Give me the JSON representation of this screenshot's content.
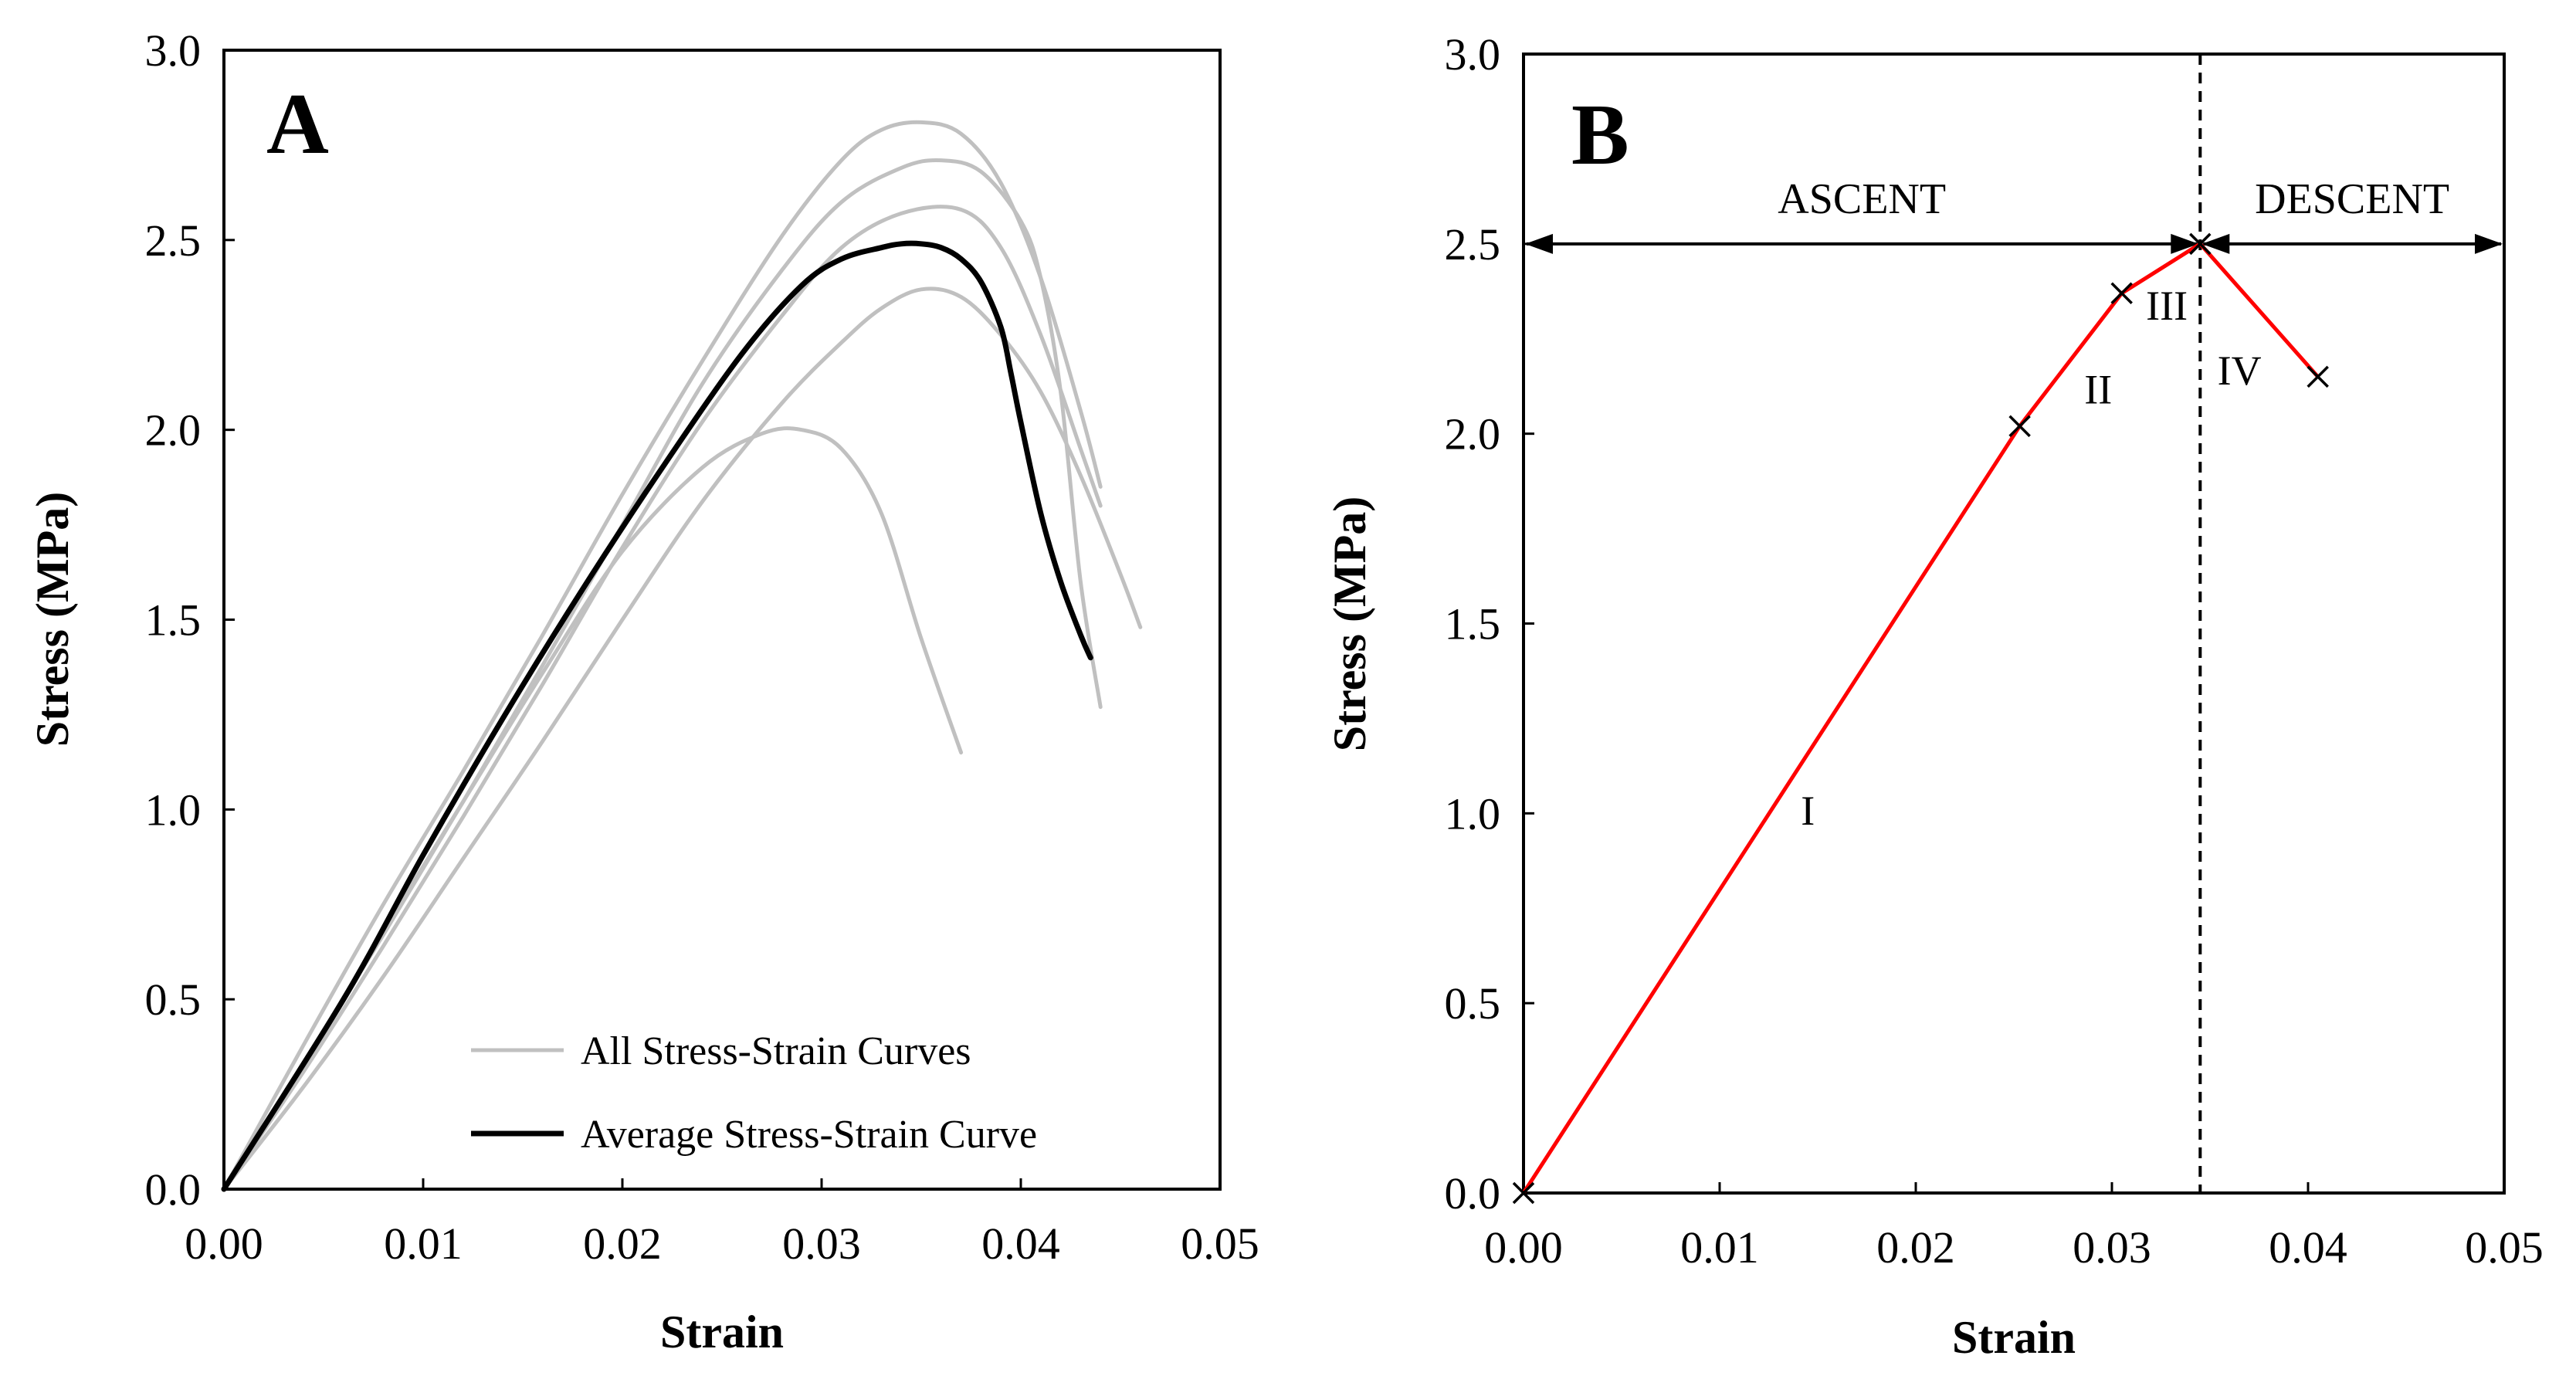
{
  "chart_data": [
    {
      "panel": "A",
      "type": "line",
      "xlabel": "Strain",
      "ylabel": "Stress (MPa)",
      "xlim": [
        0,
        0.05
      ],
      "ylim": [
        0,
        3.0
      ],
      "xticks": [
        "0.00",
        "0.01",
        "0.02",
        "0.03",
        "0.04",
        "0.05"
      ],
      "yticks": [
        "0.0",
        "0.5",
        "1.0",
        "1.5",
        "2.0",
        "2.5",
        "3.0"
      ],
      "grid": false,
      "legend_position": "bottom-right",
      "legend": [
        "All Stress-Strain Curves",
        "Average Stress-Strain Curve"
      ],
      "series": [
        {
          "legend_index": 0,
          "color": "#c0c0c0",
          "x": [
            0,
            0.004,
            0.008,
            0.012,
            0.016,
            0.02,
            0.024,
            0.027,
            0.029,
            0.031,
            0.033,
            0.035,
            0.037
          ],
          "y": [
            0,
            0.33,
            0.68,
            1.02,
            1.36,
            1.68,
            1.9,
            1.99,
            2.0,
            1.95,
            1.78,
            1.45,
            1.15
          ]
        },
        {
          "legend_index": 0,
          "color": "#c0c0c0",
          "x": [
            0,
            0.004,
            0.008,
            0.012,
            0.016,
            0.02,
            0.024,
            0.028,
            0.031,
            0.033,
            0.035,
            0.037,
            0.039,
            0.041,
            0.043,
            0.044
          ],
          "y": [
            0,
            0.38,
            0.75,
            1.1,
            1.46,
            1.83,
            2.18,
            2.51,
            2.71,
            2.79,
            2.81,
            2.78,
            2.65,
            2.4,
            2.05,
            1.85
          ]
        },
        {
          "legend_index": 0,
          "color": "#c0c0c0",
          "x": [
            0,
            0.004,
            0.008,
            0.012,
            0.016,
            0.02,
            0.024,
            0.028,
            0.031,
            0.034,
            0.036,
            0.038,
            0.04,
            0.041,
            0.042,
            0.043,
            0.044
          ],
          "y": [
            0,
            0.33,
            0.67,
            1.02,
            1.38,
            1.75,
            2.12,
            2.42,
            2.6,
            2.69,
            2.71,
            2.68,
            2.55,
            2.4,
            2.1,
            1.6,
            1.27
          ]
        },
        {
          "legend_index": 0,
          "color": "#c0c0c0",
          "x": [
            0,
            0.004,
            0.008,
            0.012,
            0.016,
            0.02,
            0.024,
            0.028,
            0.031,
            0.034,
            0.037,
            0.039,
            0.041,
            0.043,
            0.044
          ],
          "y": [
            0,
            0.31,
            0.64,
            0.98,
            1.33,
            1.69,
            2.02,
            2.3,
            2.48,
            2.57,
            2.58,
            2.48,
            2.25,
            1.95,
            1.8
          ]
        },
        {
          "legend_index": 0,
          "color": "#c0c0c0",
          "x": [
            0,
            0.004,
            0.008,
            0.012,
            0.016,
            0.02,
            0.024,
            0.028,
            0.031,
            0.033,
            0.035,
            0.037,
            0.039,
            0.041,
            0.043,
            0.045,
            0.046
          ],
          "y": [
            0,
            0.27,
            0.56,
            0.87,
            1.18,
            1.5,
            1.81,
            2.07,
            2.23,
            2.32,
            2.37,
            2.35,
            2.25,
            2.1,
            1.88,
            1.62,
            1.48
          ]
        },
        {
          "legend_index": 1,
          "color": "#000000",
          "x": [
            0,
            0.006,
            0.01,
            0.014,
            0.018,
            0.022,
            0.026,
            0.029,
            0.031,
            0.033,
            0.034,
            0.035,
            0.036,
            0.037,
            0.038,
            0.039,
            0.0395,
            0.04,
            0.041,
            0.042,
            0.043,
            0.0435
          ],
          "y": [
            0,
            0.5,
            0.88,
            1.24,
            1.58,
            1.9,
            2.2,
            2.38,
            2.45,
            2.48,
            2.49,
            2.49,
            2.48,
            2.45,
            2.39,
            2.27,
            2.15,
            2.02,
            1.78,
            1.6,
            1.46,
            1.4
          ]
        }
      ]
    },
    {
      "panel": "B",
      "type": "line",
      "xlabel": "Strain",
      "ylabel": "Stress (MPa)",
      "xlim": [
        0,
        0.05
      ],
      "ylim": [
        0,
        3.0
      ],
      "xticks": [
        "0.00",
        "0.01",
        "0.02",
        "0.03",
        "0.04",
        "0.05"
      ],
      "yticks": [
        "0.0",
        "0.5",
        "1.0",
        "1.5",
        "2.0",
        "2.5",
        "3.0"
      ],
      "grid": false,
      "series": [
        {
          "color": "#ff0000",
          "x": [
            0,
            0.0253,
            0.0305,
            0.0345,
            0.0405
          ],
          "y": [
            0,
            2.02,
            2.37,
            2.5,
            2.15
          ]
        }
      ],
      "markers": {
        "style": "x",
        "x": [
          0,
          0.0253,
          0.0305,
          0.0345,
          0.0405
        ],
        "y": [
          0,
          2.02,
          2.37,
          2.5,
          2.15
        ]
      },
      "segment_labels": [
        {
          "text": "I",
          "x": 0.0145,
          "y": 0.97
        },
        {
          "text": "II",
          "x": 0.0293,
          "y": 2.08
        },
        {
          "text": "III",
          "x": 0.0328,
          "y": 2.3
        },
        {
          "text": "IV",
          "x": 0.0365,
          "y": 2.13
        }
      ],
      "divider": {
        "x": 0.0345,
        "style": "dashed"
      },
      "regions": [
        {
          "label": "ASCENT",
          "from": 0,
          "to": 0.0345,
          "y": 2.5
        },
        {
          "label": "DESCENT",
          "from": 0.0345,
          "to": 0.05,
          "y": 2.5
        }
      ]
    }
  ]
}
